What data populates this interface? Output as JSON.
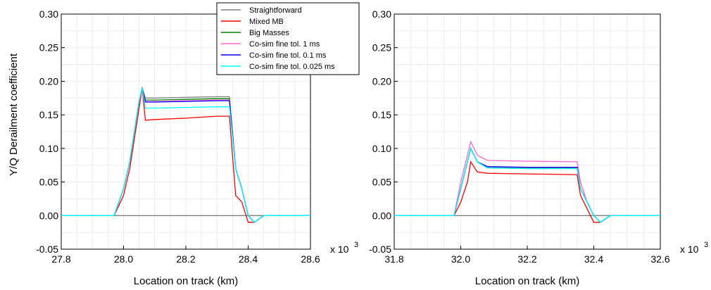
{
  "ylabel": "Y/Q Derailment coefficient",
  "colors": {
    "Straightforward": "#808080",
    "Mixed MB": "#ff0000",
    "Big Masses": "#008000",
    "Co-sim fine tol. 1 ms": "#ff66cc",
    "Co-sim fine tol. 0.1 ms": "#0000ff",
    "Co-sim fine tol. 0.025 ms": "#00ffff"
  },
  "legend": {
    "placement": "top-right of left plot",
    "entries": [
      "Straightforward",
      "Mixed MB",
      "Big Masses",
      "Co-sim fine tol. 1 ms",
      "Co-sim fine tol. 0.1 ms",
      "Co-sim fine tol. 0.025 ms"
    ]
  },
  "chart_data": [
    {
      "type": "line",
      "xlabel": "Location on track (km)",
      "x_multiplier": "x 10",
      "x_multiplier_exp": "3",
      "xlim": [
        27.8,
        28.6
      ],
      "ylim": [
        -0.05,
        0.3
      ],
      "xticks": [
        "27.8",
        "28.0",
        "28.2",
        "28.4",
        "28.6"
      ],
      "yticks": [
        "-0.05",
        "0.00",
        "0.05",
        "0.10",
        "0.15",
        "0.20",
        "0.25",
        "0.30"
      ],
      "grid": true,
      "series": [
        {
          "name": "Straightforward",
          "x": [
            27.8,
            27.97,
            28.0,
            28.02,
            28.05,
            28.06,
            28.07,
            28.1,
            28.2,
            28.3,
            28.34,
            28.36,
            28.38,
            28.4,
            28.42,
            28.45,
            28.6
          ],
          "y": [
            0.0,
            0.0,
            0.04,
            0.08,
            0.17,
            0.19,
            0.175,
            0.175,
            0.176,
            0.177,
            0.177,
            0.07,
            0.04,
            0.0,
            -0.01,
            0.0,
            0.0
          ]
        },
        {
          "name": "Mixed MB",
          "x": [
            27.8,
            27.97,
            28.0,
            28.02,
            28.05,
            28.06,
            28.07,
            28.1,
            28.2,
            28.3,
            28.34,
            28.36,
            28.38,
            28.4,
            28.42,
            28.45,
            28.6
          ],
          "y": [
            0.0,
            0.0,
            0.03,
            0.07,
            0.16,
            0.19,
            0.142,
            0.143,
            0.145,
            0.148,
            0.148,
            0.03,
            0.02,
            -0.01,
            -0.01,
            0.0,
            0.0
          ]
        },
        {
          "name": "Big Masses",
          "x": [
            27.8,
            27.97,
            28.0,
            28.02,
            28.05,
            28.06,
            28.07,
            28.1,
            28.2,
            28.3,
            28.34,
            28.36,
            28.38,
            28.4,
            28.42,
            28.45,
            28.6
          ],
          "y": [
            0.0,
            0.0,
            0.04,
            0.08,
            0.17,
            0.19,
            0.172,
            0.172,
            0.173,
            0.174,
            0.174,
            0.07,
            0.04,
            0.0,
            -0.01,
            0.0,
            0.0
          ]
        },
        {
          "name": "Co-sim fine tol. 1 ms",
          "x": [
            27.8,
            27.97,
            28.0,
            28.02,
            28.05,
            28.06,
            28.07,
            28.1,
            28.2,
            28.3,
            28.34,
            28.36,
            28.38,
            28.4,
            28.42,
            28.45,
            28.6
          ],
          "y": [
            0.0,
            0.0,
            0.04,
            0.08,
            0.17,
            0.19,
            0.17,
            0.17,
            0.171,
            0.172,
            0.172,
            0.07,
            0.04,
            0.0,
            -0.01,
            0.0,
            0.0
          ]
        },
        {
          "name": "Co-sim fine tol. 0.1 ms",
          "x": [
            27.8,
            27.97,
            28.0,
            28.02,
            28.05,
            28.06,
            28.07,
            28.1,
            28.2,
            28.3,
            28.34,
            28.36,
            28.38,
            28.4,
            28.42,
            28.45,
            28.6
          ],
          "y": [
            0.0,
            0.0,
            0.04,
            0.08,
            0.17,
            0.19,
            0.169,
            0.169,
            0.17,
            0.171,
            0.171,
            0.07,
            0.04,
            0.0,
            -0.01,
            0.0,
            0.0
          ]
        },
        {
          "name": "Co-sim fine tol. 0.025 ms",
          "x": [
            27.8,
            27.97,
            28.0,
            28.02,
            28.05,
            28.06,
            28.07,
            28.1,
            28.2,
            28.3,
            28.34,
            28.36,
            28.38,
            28.4,
            28.42,
            28.45,
            28.6
          ],
          "y": [
            0.0,
            0.0,
            0.04,
            0.08,
            0.17,
            0.19,
            0.16,
            0.16,
            0.161,
            0.162,
            0.162,
            0.07,
            0.04,
            0.0,
            -0.01,
            0.0,
            0.0
          ]
        }
      ]
    },
    {
      "type": "line",
      "xlabel": "Location on track (km)",
      "x_multiplier": "x 10",
      "x_multiplier_exp": "3",
      "xlim": [
        31.8,
        32.6
      ],
      "ylim": [
        -0.05,
        0.3
      ],
      "xticks": [
        "31.8",
        "32.0",
        "32.2",
        "32.4",
        "32.6"
      ],
      "yticks": [
        "-0.05",
        "0.00",
        "0.05",
        "0.10",
        "0.15",
        "0.20",
        "0.25",
        "0.30"
      ],
      "grid": true,
      "series": [
        {
          "name": "Straightforward",
          "x": [
            31.8,
            31.98,
            32.0,
            32.02,
            32.03,
            32.05,
            32.08,
            32.2,
            32.35,
            32.36,
            32.38,
            32.4,
            32.42,
            32.45,
            32.6
          ],
          "y": [
            0.0,
            0.0,
            0.04,
            0.08,
            0.1,
            0.08,
            0.072,
            0.071,
            0.071,
            0.04,
            0.02,
            0.0,
            -0.01,
            0.0,
            0.0
          ]
        },
        {
          "name": "Mixed MB",
          "x": [
            31.8,
            31.98,
            32.0,
            32.02,
            32.03,
            32.05,
            32.08,
            32.2,
            32.35,
            32.36,
            32.38,
            32.4,
            32.42,
            32.45,
            32.6
          ],
          "y": [
            0.0,
            0.0,
            0.02,
            0.05,
            0.08,
            0.065,
            0.063,
            0.062,
            0.061,
            0.03,
            0.01,
            -0.01,
            -0.01,
            0.0,
            0.0
          ]
        },
        {
          "name": "Big Masses",
          "x": [
            31.8,
            31.98,
            32.0,
            32.02,
            32.03,
            32.05,
            32.08,
            32.2,
            32.35,
            32.36,
            32.38,
            32.4,
            32.42,
            32.45,
            32.6
          ],
          "y": [
            0.0,
            0.0,
            0.04,
            0.08,
            0.1,
            0.08,
            0.071,
            0.07,
            0.07,
            0.04,
            0.02,
            0.0,
            -0.01,
            0.0,
            0.0
          ]
        },
        {
          "name": "Co-sim fine tol. 1 ms",
          "x": [
            31.8,
            31.98,
            32.0,
            32.02,
            32.03,
            32.05,
            32.08,
            32.2,
            32.35,
            32.36,
            32.38,
            32.4,
            32.42,
            32.45,
            32.6
          ],
          "y": [
            0.0,
            0.0,
            0.05,
            0.09,
            0.11,
            0.09,
            0.082,
            0.081,
            0.08,
            0.05,
            0.02,
            0.0,
            -0.01,
            0.0,
            0.0
          ]
        },
        {
          "name": "Co-sim fine tol. 0.1 ms",
          "x": [
            31.8,
            31.98,
            32.0,
            32.02,
            32.03,
            32.05,
            32.08,
            32.2,
            32.35,
            32.36,
            32.38,
            32.4,
            32.42,
            32.45,
            32.6
          ],
          "y": [
            0.0,
            0.0,
            0.04,
            0.08,
            0.1,
            0.08,
            0.073,
            0.072,
            0.072,
            0.04,
            0.02,
            0.0,
            -0.01,
            0.0,
            0.0
          ]
        },
        {
          "name": "Co-sim fine tol. 0.025 ms",
          "x": [
            31.8,
            31.98,
            32.0,
            32.02,
            32.03,
            32.05,
            32.08,
            32.2,
            32.35,
            32.36,
            32.38,
            32.4,
            32.42,
            32.45,
            32.6
          ],
          "y": [
            0.0,
            0.0,
            0.04,
            0.08,
            0.1,
            0.08,
            0.071,
            0.07,
            0.07,
            0.04,
            0.02,
            0.0,
            -0.01,
            0.0,
            0.0
          ]
        }
      ]
    }
  ]
}
